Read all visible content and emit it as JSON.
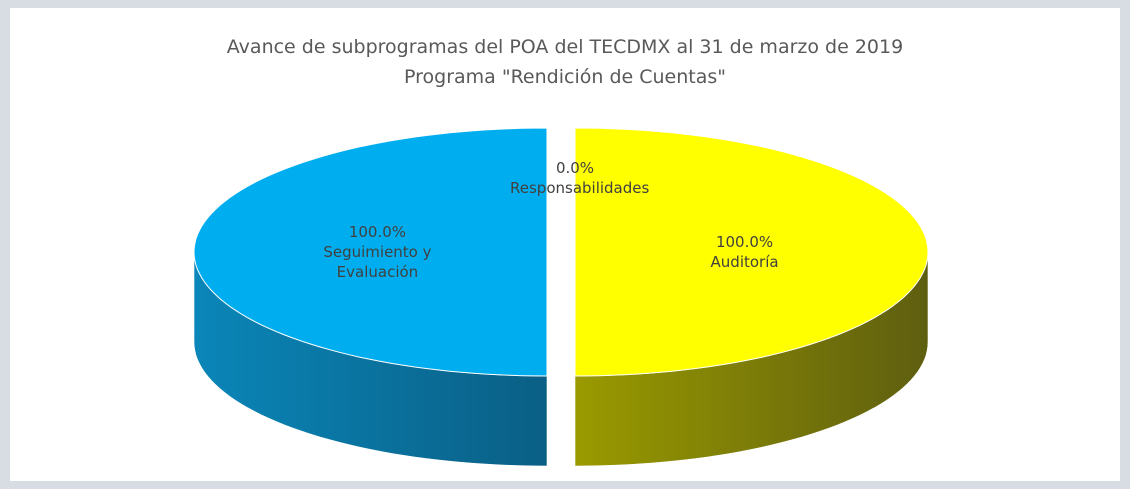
{
  "chart_data": {
    "type": "pie3d",
    "title": "Avance de subprogramas del POA del TECDMX al 31 de marzo de 2019",
    "subtitle": "Programa \"Rendición de Cuentas\"",
    "categories": [
      "Auditoría",
      "Seguimiento y Evaluación",
      "Responsabilidades"
    ],
    "values": [
      100,
      100,
      0
    ],
    "value_labels": [
      "100.0%",
      "100.0%",
      "0.0%"
    ],
    "colors": [
      "#ffff00",
      "#00aeef",
      "#7fb2d6"
    ]
  }
}
